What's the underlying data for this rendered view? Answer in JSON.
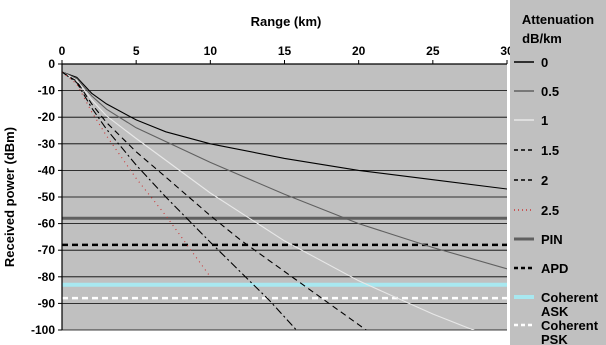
{
  "chart_data": {
    "type": "line",
    "title": "",
    "xlabel": "Range (km)",
    "ylabel": "Received power (dBm)",
    "xlim": [
      0,
      30
    ],
    "ylim": [
      -100,
      0
    ],
    "x_axis_position": "top",
    "xticks": [
      0,
      5,
      10,
      15,
      20,
      25,
      30
    ],
    "yticks": [
      0,
      -10,
      -20,
      -30,
      -40,
      -50,
      -60,
      -70,
      -80,
      -90,
      -100
    ],
    "grid": "horizontal",
    "plot_background": "#c0c0c0",
    "legend_title": "Attenuation dB/km",
    "legend_position": "right",
    "series": [
      {
        "name": "0",
        "color": "#000000",
        "dash": "solid",
        "x": [
          0,
          1,
          2,
          3,
          5,
          7,
          10,
          15,
          20,
          25,
          30
        ],
        "y": [
          -3,
          -5,
          -11,
          -15,
          -21,
          -25.5,
          -30,
          -35.5,
          -40,
          -43.5,
          -47
        ]
      },
      {
        "name": "0.5",
        "color": "#606060",
        "dash": "solid",
        "x": [
          0,
          1,
          2,
          3,
          5,
          10,
          15,
          20,
          25,
          30
        ],
        "y": [
          -3,
          -5.5,
          -12,
          -17,
          -24,
          -37,
          -49,
          -60,
          -69,
          -77
        ]
      },
      {
        "name": "1",
        "color": "#e8e8e8",
        "dash": "solid",
        "x": [
          0,
          1,
          2,
          3,
          5,
          10,
          15,
          20,
          25,
          30
        ],
        "y": [
          -3,
          -6,
          -13.5,
          -19.5,
          -28,
          -48.5,
          -66.5,
          -81.5,
          -94,
          -105
        ]
      },
      {
        "name": "1.5",
        "color": "#000000",
        "dash": "dashed",
        "x": [
          0,
          1,
          2,
          3,
          5,
          7,
          10,
          12,
          15,
          18,
          20,
          21.5
        ],
        "y": [
          -3,
          -6.5,
          -15,
          -22,
          -33,
          -42.5,
          -57,
          -66,
          -78,
          -90,
          -98,
          -104
        ]
      },
      {
        "name": "2",
        "color": "#000000",
        "dash": "dashdot",
        "x": [
          0,
          1,
          2,
          3,
          5,
          7,
          10,
          12,
          14,
          15.8
        ],
        "y": [
          -3,
          -7,
          -16.5,
          -24.5,
          -38,
          -50,
          -67,
          -78,
          -89,
          -100
        ]
      },
      {
        "name": "2.5",
        "color": "#cc3333",
        "dash": "dotted",
        "x": [
          0,
          1,
          2,
          3,
          5,
          7,
          10
        ],
        "y": [
          -3,
          -7.5,
          -18,
          -27,
          -43,
          -57,
          -80
        ]
      }
    ],
    "reference_lines": [
      {
        "name": "PIN",
        "y": -58,
        "color": "#606060",
        "dash": "solid",
        "width": 3
      },
      {
        "name": "APD",
        "y": -68,
        "color": "#000000",
        "dash": "dashed",
        "width": 2.5
      },
      {
        "name": "Coherent ASK",
        "y": -83,
        "color": "#a8e8f0",
        "dash": "solid",
        "width": 4
      },
      {
        "name": "Coherent PSK",
        "y": -88,
        "color": "#ffffff",
        "dash": "dashed",
        "width": 2.5
      }
    ]
  }
}
